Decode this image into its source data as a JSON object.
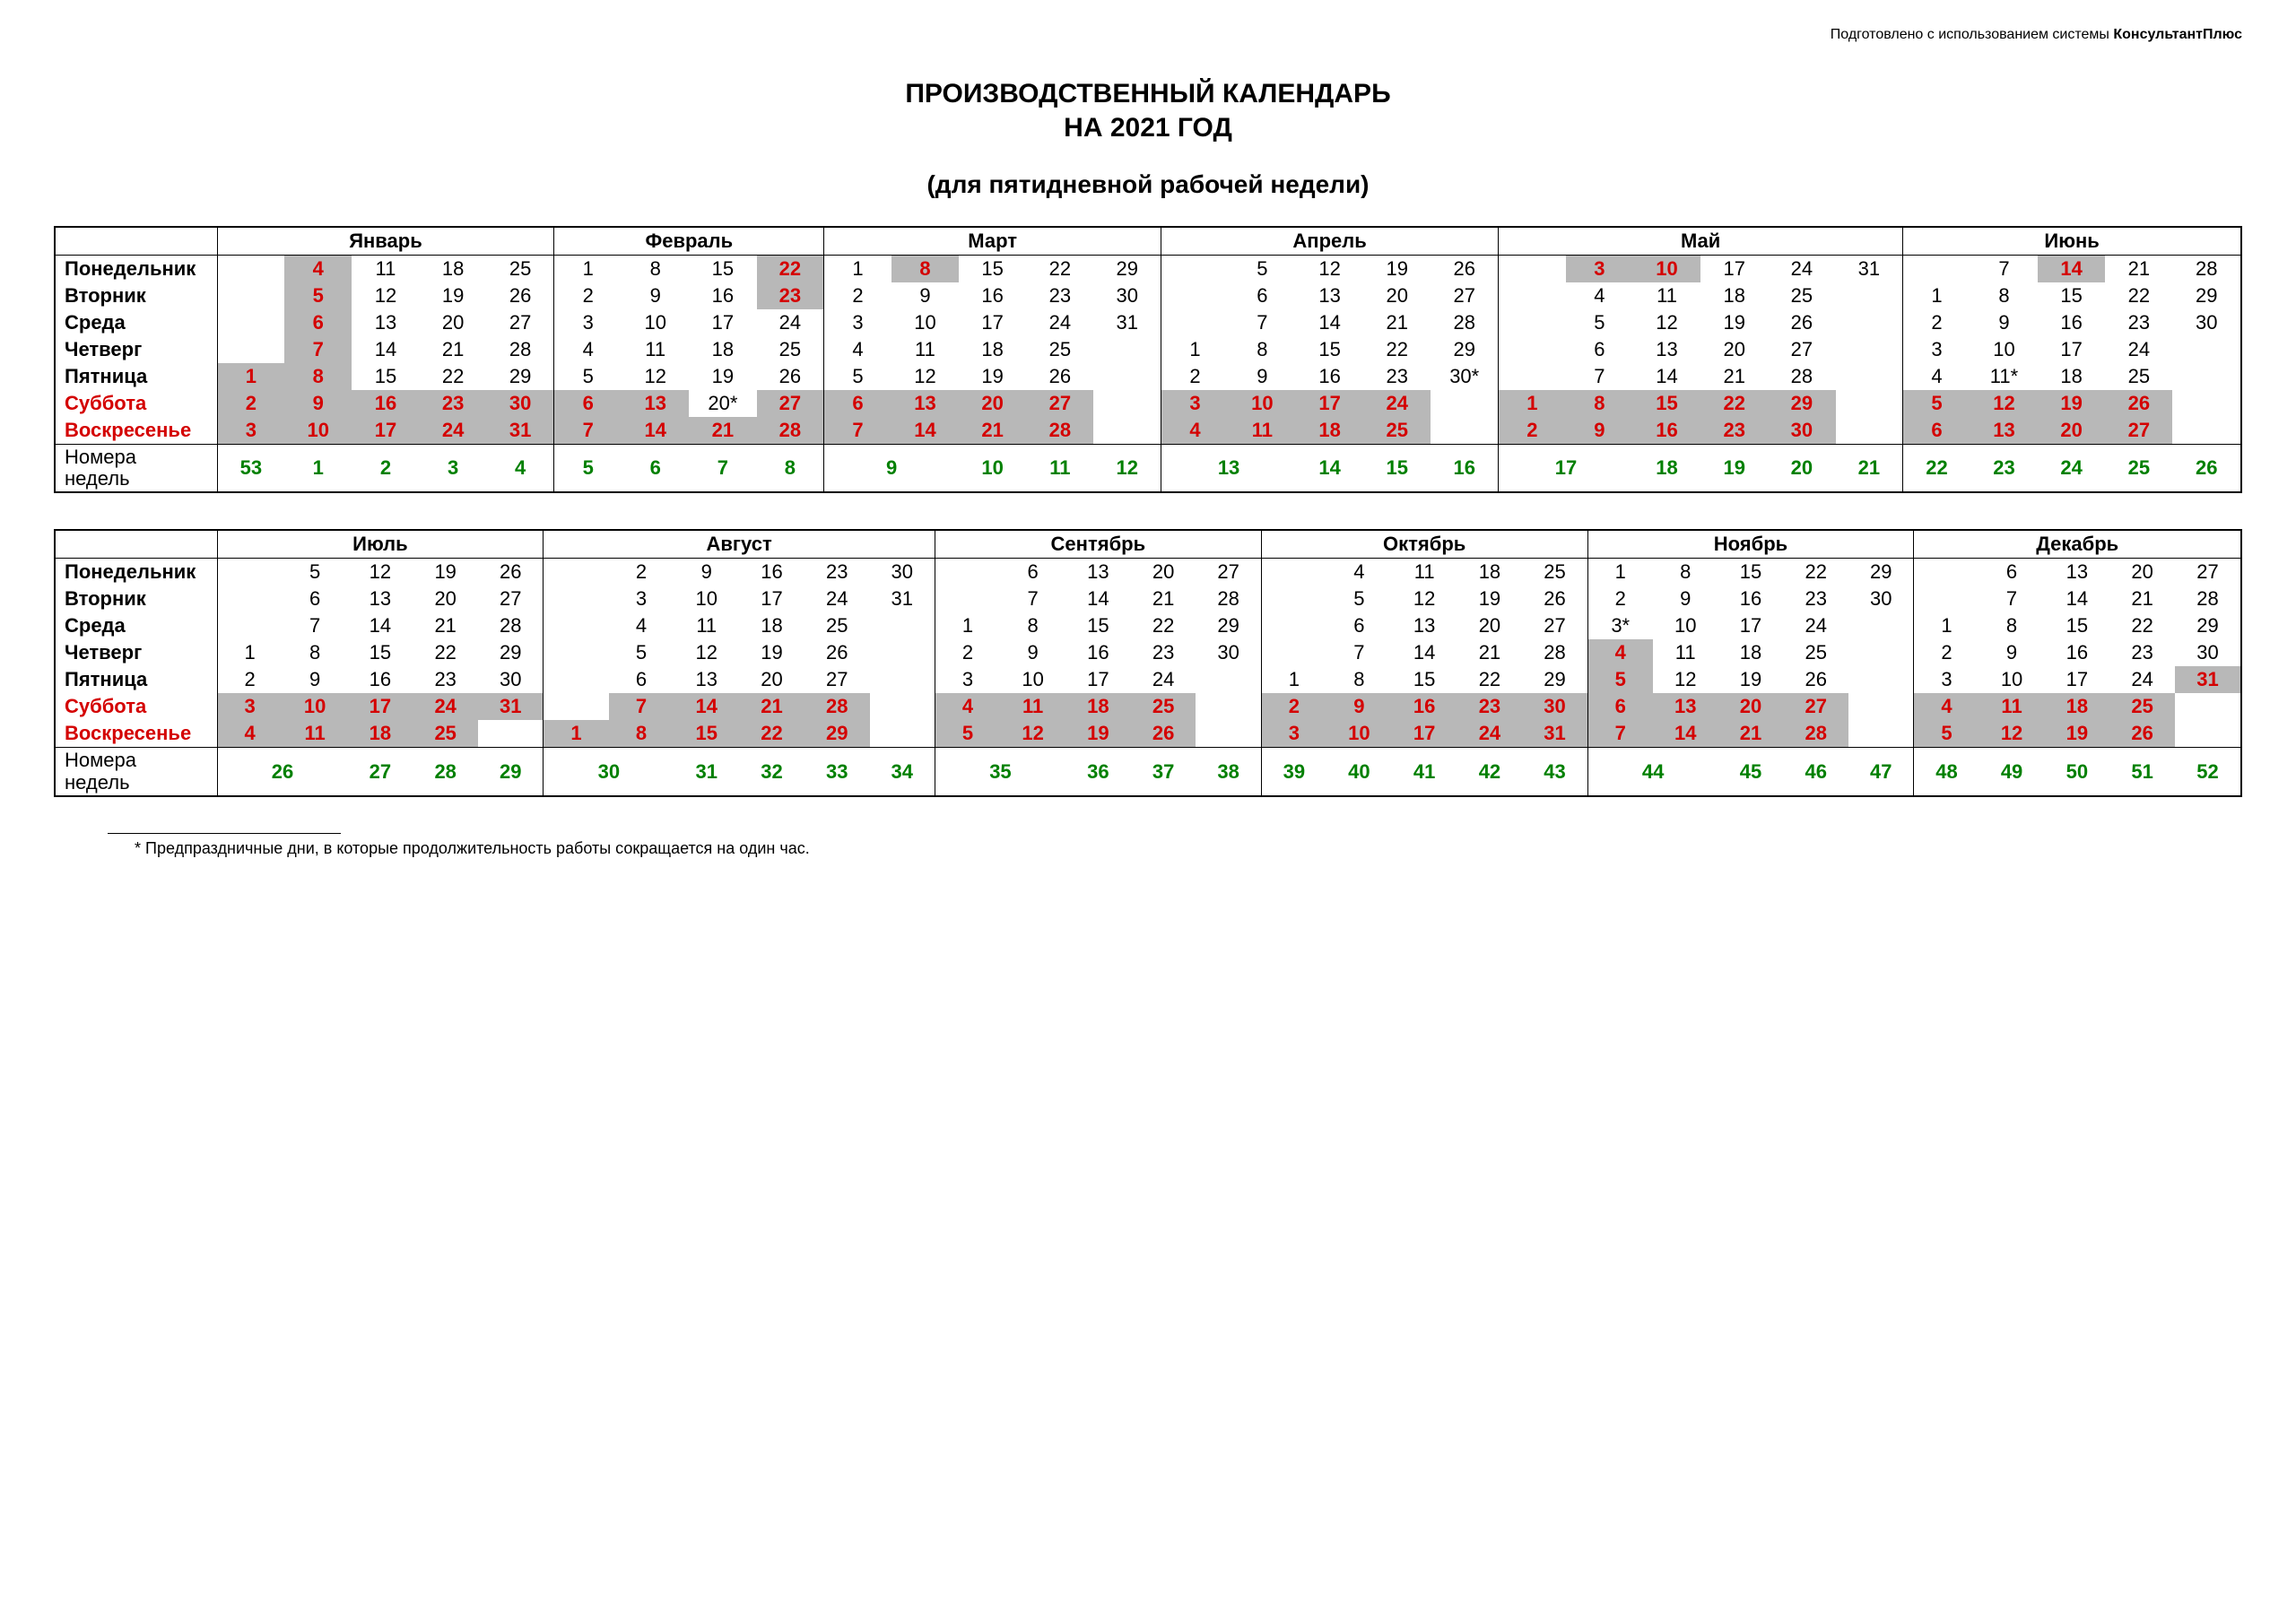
{
  "attribution_prefix": "Подготовлено с использованием системы ",
  "attribution_bold": "КонсультантПлюс",
  "title_line1": "ПРОИЗВОДСТВЕННЫЙ КАЛЕНДАРЬ",
  "title_line2": "НА 2021 ГОД",
  "subtitle": "(для пятидневной рабочей недели)",
  "footnote": "* Предпраздничные дни, в которые продолжительность работы сокращается на один час.",
  "colors": {
    "holiday_bg": "#b8b8b8",
    "red": "#d40000",
    "green": "#008000",
    "border": "#000000",
    "text": "#000000"
  },
  "typography": {
    "base_font": "Arial, sans-serif",
    "title_fontsize_pt": 22,
    "cell_fontsize_pt": 16
  },
  "day_labels": [
    "Понедельник",
    "Вторник",
    "Среда",
    "Четверг",
    "Пятница",
    "Суббота",
    "Воскресенье"
  ],
  "weeknum_label": "Номера недель",
  "halves": [
    {
      "months": [
        {
          "name": "Январь",
          "ncols": 5,
          "grid": [
            [
              "",
              "4",
              "11",
              "18",
              "25"
            ],
            [
              "",
              "5",
              "12",
              "19",
              "26"
            ],
            [
              "",
              "6",
              "13",
              "20",
              "27"
            ],
            [
              "",
              "7",
              "14",
              "21",
              "28"
            ],
            [
              "1",
              "8",
              "15",
              "22",
              "29"
            ],
            [
              "2",
              "9",
              "16",
              "23",
              "30"
            ],
            [
              "3",
              "10",
              "17",
              "24",
              "31"
            ]
          ],
          "red": [
            "1",
            "2",
            "3",
            "4",
            "5",
            "6",
            "7",
            "8",
            "9",
            "10",
            "16",
            "17",
            "23",
            "24",
            "30",
            "31"
          ],
          "holiday": [
            "1",
            "2",
            "3",
            "4",
            "5",
            "6",
            "7",
            "8",
            "9",
            "10",
            "16",
            "17",
            "23",
            "24",
            "30",
            "31"
          ],
          "star": [],
          "weeknums": [
            "53",
            "1",
            "2",
            "3",
            "4"
          ]
        },
        {
          "name": "Февраль",
          "ncols": 4,
          "grid": [
            [
              "1",
              "8",
              "15",
              "22"
            ],
            [
              "2",
              "9",
              "16",
              "23"
            ],
            [
              "3",
              "10",
              "17",
              "24"
            ],
            [
              "4",
              "11",
              "18",
              "25"
            ],
            [
              "5",
              "12",
              "19",
              "26"
            ],
            [
              "6",
              "13",
              "20",
              "27"
            ],
            [
              "7",
              "14",
              "21",
              "28"
            ]
          ],
          "red": [
            "6",
            "7",
            "13",
            "14",
            "21",
            "22",
            "23",
            "27",
            "28"
          ],
          "holiday": [
            "6",
            "7",
            "13",
            "14",
            "21",
            "22",
            "23",
            "27",
            "28"
          ],
          "star": [
            "20"
          ],
          "weeknums": [
            "5",
            "6",
            "7",
            "8"
          ]
        },
        {
          "name": "Март",
          "ncols": 5,
          "grid": [
            [
              "1",
              "8",
              "15",
              "22",
              "29"
            ],
            [
              "2",
              "9",
              "16",
              "23",
              "30"
            ],
            [
              "3",
              "10",
              "17",
              "24",
              "31"
            ],
            [
              "4",
              "11",
              "18",
              "25",
              ""
            ],
            [
              "5",
              "12",
              "19",
              "26",
              ""
            ],
            [
              "6",
              "13",
              "20",
              "27",
              ""
            ],
            [
              "7",
              "14",
              "21",
              "28",
              ""
            ]
          ],
          "red": [
            "6",
            "7",
            "8",
            "13",
            "14",
            "20",
            "21",
            "27",
            "28"
          ],
          "holiday": [
            "6",
            "7",
            "8",
            "13",
            "14",
            "20",
            "21",
            "27",
            "28"
          ],
          "star": [],
          "weeknums": [
            "9",
            "10",
            "11",
            "12"
          ]
        },
        {
          "name": "Апрель",
          "ncols": 5,
          "grid": [
            [
              "",
              "5",
              "12",
              "19",
              "26"
            ],
            [
              "",
              "6",
              "13",
              "20",
              "27"
            ],
            [
              "",
              "7",
              "14",
              "21",
              "28"
            ],
            [
              "1",
              "8",
              "15",
              "22",
              "29"
            ],
            [
              "2",
              "9",
              "16",
              "23",
              "30"
            ],
            [
              "3",
              "10",
              "17",
              "24",
              ""
            ],
            [
              "4",
              "11",
              "18",
              "25",
              ""
            ]
          ],
          "red": [
            "3",
            "4",
            "10",
            "11",
            "17",
            "18",
            "24",
            "25"
          ],
          "holiday": [
            "3",
            "4",
            "10",
            "11",
            "17",
            "18",
            "24",
            "25"
          ],
          "star": [
            "30"
          ],
          "weeknums": [
            "13",
            "14",
            "15",
            "16"
          ]
        },
        {
          "name": "Май",
          "ncols": 6,
          "grid": [
            [
              "",
              "3",
              "10",
              "17",
              "24",
              "31"
            ],
            [
              "",
              "4",
              "11",
              "18",
              "25",
              ""
            ],
            [
              "",
              "5",
              "12",
              "19",
              "26",
              ""
            ],
            [
              "",
              "6",
              "13",
              "20",
              "27",
              ""
            ],
            [
              "",
              "7",
              "14",
              "21",
              "28",
              ""
            ],
            [
              "1",
              "8",
              "15",
              "22",
              "29",
              ""
            ],
            [
              "2",
              "9",
              "16",
              "23",
              "30",
              ""
            ]
          ],
          "red": [
            "1",
            "2",
            "3",
            "8",
            "9",
            "10",
            "15",
            "16",
            "22",
            "23",
            "29",
            "30"
          ],
          "holiday": [
            "1",
            "2",
            "3",
            "8",
            "9",
            "10",
            "15",
            "16",
            "22",
            "23",
            "29",
            "30"
          ],
          "star": [],
          "weeknums": [
            "17",
            "18",
            "19",
            "20",
            "21"
          ]
        },
        {
          "name": "Июнь",
          "ncols": 5,
          "grid": [
            [
              "",
              "7",
              "14",
              "21",
              "28"
            ],
            [
              "1",
              "8",
              "15",
              "22",
              "29"
            ],
            [
              "2",
              "9",
              "16",
              "23",
              "30"
            ],
            [
              "3",
              "10",
              "17",
              "24",
              ""
            ],
            [
              "4",
              "11",
              "18",
              "25",
              ""
            ],
            [
              "5",
              "12",
              "19",
              "26",
              ""
            ],
            [
              "6",
              "13",
              "20",
              "27",
              ""
            ]
          ],
          "red": [
            "5",
            "6",
            "12",
            "13",
            "14",
            "19",
            "20",
            "26",
            "27"
          ],
          "holiday": [
            "5",
            "6",
            "12",
            "13",
            "14",
            "19",
            "20",
            "26",
            "27"
          ],
          "star": [
            "11"
          ],
          "weeknums": [
            "22",
            "23",
            "24",
            "25",
            "26"
          ]
        }
      ],
      "weeknum_span": [
        5,
        4,
        4,
        4,
        5,
        5
      ]
    },
    {
      "months": [
        {
          "name": "Июль",
          "ncols": 5,
          "grid": [
            [
              "",
              "5",
              "12",
              "19",
              "26"
            ],
            [
              "",
              "6",
              "13",
              "20",
              "27"
            ],
            [
              "",
              "7",
              "14",
              "21",
              "28"
            ],
            [
              "1",
              "8",
              "15",
              "22",
              "29"
            ],
            [
              "2",
              "9",
              "16",
              "23",
              "30"
            ],
            [
              "3",
              "10",
              "17",
              "24",
              "31"
            ],
            [
              "4",
              "11",
              "18",
              "25",
              ""
            ]
          ],
          "red": [
            "3",
            "4",
            "10",
            "11",
            "17",
            "18",
            "24",
            "25",
            "31"
          ],
          "holiday": [
            "3",
            "4",
            "10",
            "11",
            "17",
            "18",
            "24",
            "25",
            "31"
          ],
          "star": [],
          "weeknums": [
            "26",
            "27",
            "28",
            "29"
          ]
        },
        {
          "name": "Август",
          "ncols": 6,
          "grid": [
            [
              "",
              "2",
              "9",
              "16",
              "23",
              "30"
            ],
            [
              "",
              "3",
              "10",
              "17",
              "24",
              "31"
            ],
            [
              "",
              "4",
              "11",
              "18",
              "25",
              ""
            ],
            [
              "",
              "5",
              "12",
              "19",
              "26",
              ""
            ],
            [
              "",
              "6",
              "13",
              "20",
              "27",
              ""
            ],
            [
              "",
              "7",
              "14",
              "21",
              "28",
              ""
            ],
            [
              "1",
              "8",
              "15",
              "22",
              "29",
              ""
            ]
          ],
          "red": [
            "1",
            "7",
            "8",
            "14",
            "15",
            "21",
            "22",
            "28",
            "29"
          ],
          "holiday": [
            "1",
            "7",
            "8",
            "14",
            "15",
            "21",
            "22",
            "28",
            "29"
          ],
          "star": [],
          "weeknums": [
            "30",
            "31",
            "32",
            "33",
            "34"
          ]
        },
        {
          "name": "Сентябрь",
          "ncols": 5,
          "grid": [
            [
              "",
              "6",
              "13",
              "20",
              "27"
            ],
            [
              "",
              "7",
              "14",
              "21",
              "28"
            ],
            [
              "1",
              "8",
              "15",
              "22",
              "29"
            ],
            [
              "2",
              "9",
              "16",
              "23",
              "30"
            ],
            [
              "3",
              "10",
              "17",
              "24",
              ""
            ],
            [
              "4",
              "11",
              "18",
              "25",
              ""
            ],
            [
              "5",
              "12",
              "19",
              "26",
              ""
            ]
          ],
          "red": [
            "4",
            "5",
            "11",
            "12",
            "18",
            "19",
            "25",
            "26"
          ],
          "holiday": [
            "4",
            "5",
            "11",
            "12",
            "18",
            "19",
            "25",
            "26"
          ],
          "star": [],
          "weeknums": [
            "35",
            "36",
            "37",
            "38"
          ]
        },
        {
          "name": "Октябрь",
          "ncols": 5,
          "grid": [
            [
              "",
              "4",
              "11",
              "18",
              "25"
            ],
            [
              "",
              "5",
              "12",
              "19",
              "26"
            ],
            [
              "",
              "6",
              "13",
              "20",
              "27"
            ],
            [
              "",
              "7",
              "14",
              "21",
              "28"
            ],
            [
              "1",
              "8",
              "15",
              "22",
              "29"
            ],
            [
              "2",
              "9",
              "16",
              "23",
              "30"
            ],
            [
              "3",
              "10",
              "17",
              "24",
              "31"
            ]
          ],
          "red": [
            "2",
            "3",
            "9",
            "10",
            "16",
            "17",
            "23",
            "24",
            "30",
            "31"
          ],
          "holiday": [
            "2",
            "3",
            "9",
            "10",
            "16",
            "17",
            "23",
            "24",
            "30",
            "31"
          ],
          "star": [],
          "weeknums": [
            "39",
            "40",
            "41",
            "42",
            "43"
          ]
        },
        {
          "name": "Ноябрь",
          "ncols": 5,
          "grid": [
            [
              "1",
              "8",
              "15",
              "22",
              "29"
            ],
            [
              "2",
              "9",
              "16",
              "23",
              "30"
            ],
            [
              "3",
              "10",
              "17",
              "24",
              ""
            ],
            [
              "4",
              "11",
              "18",
              "25",
              ""
            ],
            [
              "5",
              "12",
              "19",
              "26",
              ""
            ],
            [
              "6",
              "13",
              "20",
              "27",
              ""
            ],
            [
              "7",
              "14",
              "21",
              "28",
              ""
            ]
          ],
          "red": [
            "4",
            "5",
            "6",
            "7",
            "13",
            "14",
            "20",
            "21",
            "27",
            "28"
          ],
          "holiday": [
            "4",
            "5",
            "6",
            "7",
            "13",
            "14",
            "20",
            "21",
            "27",
            "28"
          ],
          "star": [
            "3"
          ],
          "weeknums": [
            "44",
            "45",
            "46",
            "47"
          ]
        },
        {
          "name": "Декабрь",
          "ncols": 5,
          "grid": [
            [
              "",
              "6",
              "13",
              "20",
              "27"
            ],
            [
              "",
              "7",
              "14",
              "21",
              "28"
            ],
            [
              "1",
              "8",
              "15",
              "22",
              "29"
            ],
            [
              "2",
              "9",
              "16",
              "23",
              "30"
            ],
            [
              "3",
              "10",
              "17",
              "24",
              "31"
            ],
            [
              "4",
              "11",
              "18",
              "25",
              ""
            ],
            [
              "5",
              "12",
              "19",
              "26",
              ""
            ]
          ],
          "red": [
            "4",
            "5",
            "11",
            "12",
            "18",
            "19",
            "25",
            "26",
            "31"
          ],
          "holiday": [
            "4",
            "5",
            "11",
            "12",
            "18",
            "19",
            "25",
            "26",
            "31"
          ],
          "star": [],
          "weeknums": [
            "48",
            "49",
            "50",
            "51",
            "52"
          ]
        }
      ],
      "weeknum_span": [
        4,
        5,
        4,
        5,
        4,
        5
      ]
    }
  ]
}
